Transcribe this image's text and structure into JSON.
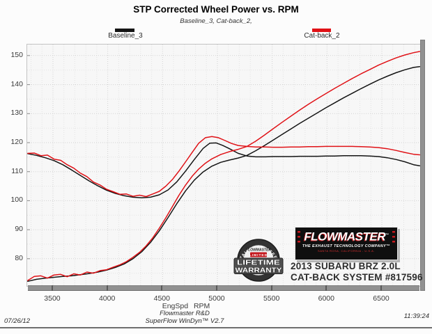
{
  "header": {
    "title": "STP Corrected Wheel Power vs. RPM",
    "subtitle": "Baseline_3, Cat-back_2,"
  },
  "legend": {
    "items": [
      {
        "id": "baseline-3",
        "label": "Baseline_3",
        "color": "#141414"
      },
      {
        "id": "cat-back-2",
        "label": "Cat-back_2",
        "color": "#e01116"
      }
    ]
  },
  "chart_data": {
    "type": "line",
    "title": "STP Corrected Wheel Power vs. RPM",
    "xlabel": "EngSpd RPM",
    "ylabel": "",
    "xlim": [
      3265,
      6856
    ],
    "ylim": [
      70.6,
      153.8
    ],
    "x_ticks": [
      3500,
      4000,
      4500,
      5000,
      5500,
      6000,
      6500
    ],
    "y_ticks": [
      80,
      90,
      100,
      110,
      120,
      130,
      140,
      150
    ],
    "grid": "dotted, minor every 100 RPM / 5 units",
    "legend_position": "top",
    "series": [
      {
        "id": "baseline3-power-curve",
        "name": "Baseline_3 power",
        "color": "#141414",
        "width": 1.5,
        "points": [
          [
            3270,
            72.2
          ],
          [
            3350,
            72.9
          ],
          [
            3430,
            73.3
          ],
          [
            3510,
            73.6
          ],
          [
            3590,
            73.9
          ],
          [
            3670,
            74.1
          ],
          [
            3750,
            74.5
          ],
          [
            3830,
            74.9
          ],
          [
            3910,
            75.4
          ],
          [
            3990,
            76.1
          ],
          [
            4070,
            77.0
          ],
          [
            4150,
            78.2
          ],
          [
            4230,
            80.0
          ],
          [
            4310,
            82.4
          ],
          [
            4390,
            85.6
          ],
          [
            4470,
            89.6
          ],
          [
            4550,
            94.2
          ],
          [
            4630,
            99.0
          ],
          [
            4710,
            103.4
          ],
          [
            4790,
            107.1
          ],
          [
            4870,
            109.9
          ],
          [
            4950,
            111.9
          ],
          [
            5030,
            113.2
          ],
          [
            5110,
            114.0
          ],
          [
            5190,
            114.7
          ],
          [
            5270,
            115.6
          ],
          [
            5350,
            117.2
          ],
          [
            5430,
            119.0
          ],
          [
            5510,
            120.9
          ],
          [
            5590,
            122.8
          ],
          [
            5670,
            124.7
          ],
          [
            5750,
            126.6
          ],
          [
            5830,
            128.4
          ],
          [
            5910,
            130.2
          ],
          [
            5990,
            132.0
          ],
          [
            6070,
            133.7
          ],
          [
            6150,
            135.4
          ],
          [
            6230,
            137.0
          ],
          [
            6310,
            138.6
          ],
          [
            6390,
            140.1
          ],
          [
            6470,
            141.6
          ],
          [
            6550,
            142.9
          ],
          [
            6630,
            144.1
          ],
          [
            6710,
            145.1
          ],
          [
            6790,
            145.9
          ],
          [
            6845,
            146.2
          ]
        ]
      },
      {
        "id": "baseline3-torque-curve",
        "name": "Baseline_3 torque",
        "color": "#141414",
        "width": 1.5,
        "points": [
          [
            3270,
            116.2
          ],
          [
            3350,
            115.6
          ],
          [
            3430,
            114.8
          ],
          [
            3510,
            113.8
          ],
          [
            3590,
            112.4
          ],
          [
            3670,
            110.6
          ],
          [
            3750,
            108.7
          ],
          [
            3830,
            106.8
          ],
          [
            3910,
            105.1
          ],
          [
            3990,
            103.6
          ],
          [
            4070,
            102.5
          ],
          [
            4150,
            101.7
          ],
          [
            4230,
            101.2
          ],
          [
            4310,
            101.0
          ],
          [
            4390,
            101.2
          ],
          [
            4470,
            102.0
          ],
          [
            4550,
            103.7
          ],
          [
            4630,
            106.5
          ],
          [
            4710,
            110.2
          ],
          [
            4790,
            114.2
          ],
          [
            4870,
            118.0
          ],
          [
            4930,
            119.8
          ],
          [
            4990,
            119.9
          ],
          [
            5050,
            119.0
          ],
          [
            5110,
            117.9
          ],
          [
            5190,
            116.3
          ],
          [
            5270,
            115.4
          ],
          [
            5350,
            115.1
          ],
          [
            5430,
            115.1
          ],
          [
            5510,
            115.2
          ],
          [
            5590,
            115.2
          ],
          [
            5670,
            115.2
          ],
          [
            5750,
            115.3
          ],
          [
            5830,
            115.3
          ],
          [
            5910,
            115.3
          ],
          [
            5990,
            115.4
          ],
          [
            6070,
            115.4
          ],
          [
            6150,
            115.5
          ],
          [
            6230,
            115.5
          ],
          [
            6310,
            115.5
          ],
          [
            6390,
            115.4
          ],
          [
            6470,
            115.2
          ],
          [
            6550,
            114.8
          ],
          [
            6630,
            114.2
          ],
          [
            6710,
            113.4
          ],
          [
            6790,
            112.4
          ],
          [
            6845,
            112.0
          ]
        ]
      },
      {
        "id": "catback2-power-curve",
        "name": "Cat-back_2 power",
        "color": "#e01116",
        "width": 1.5,
        "points": [
          [
            3270,
            72.5
          ],
          [
            3330,
            73.9
          ],
          [
            3390,
            74.1
          ],
          [
            3450,
            73.3
          ],
          [
            3510,
            74.4
          ],
          [
            3570,
            74.6
          ],
          [
            3630,
            73.8
          ],
          [
            3690,
            74.8
          ],
          [
            3750,
            74.4
          ],
          [
            3810,
            75.4
          ],
          [
            3870,
            75.0
          ],
          [
            3930,
            75.9
          ],
          [
            3990,
            76.2
          ],
          [
            4050,
            77.1
          ],
          [
            4110,
            77.9
          ],
          [
            4170,
            79.0
          ],
          [
            4230,
            80.5
          ],
          [
            4290,
            82.2
          ],
          [
            4350,
            84.4
          ],
          [
            4410,
            87.2
          ],
          [
            4470,
            90.5
          ],
          [
            4530,
            94.1
          ],
          [
            4590,
            98.0
          ],
          [
            4650,
            101.9
          ],
          [
            4710,
            105.4
          ],
          [
            4770,
            108.4
          ],
          [
            4830,
            110.9
          ],
          [
            4890,
            112.9
          ],
          [
            4950,
            114.4
          ],
          [
            5030,
            115.9
          ],
          [
            5110,
            116.9
          ],
          [
            5190,
            117.7
          ],
          [
            5270,
            118.7
          ],
          [
            5350,
            120.5
          ],
          [
            5430,
            122.6
          ],
          [
            5510,
            124.8
          ],
          [
            5590,
            127.0
          ],
          [
            5670,
            129.1
          ],
          [
            5750,
            131.2
          ],
          [
            5830,
            133.2
          ],
          [
            5910,
            135.1
          ],
          [
            5990,
            136.9
          ],
          [
            6070,
            138.7
          ],
          [
            6150,
            140.4
          ],
          [
            6230,
            142.1
          ],
          [
            6310,
            143.7
          ],
          [
            6390,
            145.2
          ],
          [
            6470,
            146.7
          ],
          [
            6550,
            148.0
          ],
          [
            6630,
            149.2
          ],
          [
            6710,
            150.2
          ],
          [
            6790,
            151.0
          ],
          [
            6845,
            151.4
          ]
        ]
      },
      {
        "id": "catback2-torque-curve",
        "name": "Cat-back_2 torque",
        "color": "#e01116",
        "width": 1.5,
        "points": [
          [
            3270,
            116.3
          ],
          [
            3330,
            116.4
          ],
          [
            3390,
            115.5
          ],
          [
            3450,
            115.7
          ],
          [
            3510,
            114.3
          ],
          [
            3570,
            113.9
          ],
          [
            3630,
            112.4
          ],
          [
            3690,
            111.2
          ],
          [
            3750,
            109.5
          ],
          [
            3810,
            108.3
          ],
          [
            3870,
            106.4
          ],
          [
            3930,
            105.4
          ],
          [
            3990,
            103.9
          ],
          [
            4050,
            103.1
          ],
          [
            4110,
            102.2
          ],
          [
            4170,
            102.3
          ],
          [
            4230,
            101.5
          ],
          [
            4290,
            101.9
          ],
          [
            4350,
            101.4
          ],
          [
            4410,
            102.3
          ],
          [
            4470,
            103.2
          ],
          [
            4530,
            105.0
          ],
          [
            4590,
            107.3
          ],
          [
            4650,
            110.2
          ],
          [
            4710,
            113.4
          ],
          [
            4770,
            116.6
          ],
          [
            4830,
            119.8
          ],
          [
            4890,
            121.7
          ],
          [
            4950,
            122.1
          ],
          [
            5010,
            121.7
          ],
          [
            5070,
            120.7
          ],
          [
            5130,
            119.7
          ],
          [
            5190,
            119.0
          ],
          [
            5270,
            118.7
          ],
          [
            5350,
            118.5
          ],
          [
            5430,
            118.5
          ],
          [
            5510,
            118.4
          ],
          [
            5590,
            118.4
          ],
          [
            5670,
            118.5
          ],
          [
            5750,
            118.5
          ],
          [
            5830,
            118.6
          ],
          [
            5910,
            118.6
          ],
          [
            5990,
            118.7
          ],
          [
            6070,
            118.7
          ],
          [
            6150,
            118.7
          ],
          [
            6230,
            118.7
          ],
          [
            6310,
            118.6
          ],
          [
            6390,
            118.5
          ],
          [
            6470,
            118.3
          ],
          [
            6550,
            117.9
          ],
          [
            6630,
            117.3
          ],
          [
            6710,
            116.6
          ],
          [
            6790,
            116.0
          ],
          [
            6845,
            115.8
          ]
        ]
      }
    ]
  },
  "axis": {
    "x_title": "EngSpd RPM"
  },
  "branding": {
    "logo_title": "FLOWMASTER",
    "logo_tm": "™",
    "logo_subtitle": "THE EXHAUST TECHNOLOGY COMPANY™",
    "logo_tagline": "SANTA ROSA, CALIFORNIA - U.S.A.",
    "badge_arc": "STAINLESS STEEL",
    "badge_brand": "FLOWMASTER",
    "badge_limited": "LIMITED",
    "badge_line1": "LIFETIME",
    "badge_line2": "WARRANTY",
    "vehicle_line1": "2013 SUBARU BRZ 2.0L",
    "vehicle_line2": "CAT-BACK SYSTEM #817596"
  },
  "footer": {
    "date": "07/26/12",
    "center_line1": "Flowmaster R&D",
    "center_line2": "SuperFlow WinDyn™ V2.7",
    "time": "11:39:24"
  }
}
